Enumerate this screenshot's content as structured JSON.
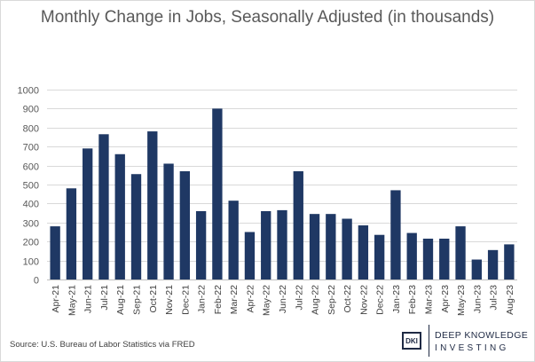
{
  "chart_data": {
    "type": "bar",
    "title": "Monthly Change in Jobs, Seasonally Adjusted (in thousands)",
    "xlabel": "",
    "ylabel": "",
    "ylim": [
      0,
      1000
    ],
    "yticks": [
      0,
      100,
      200,
      300,
      400,
      500,
      600,
      700,
      800,
      900,
      1000
    ],
    "grid": true,
    "bar_color": "#1f3864",
    "categories": [
      "Apr-21",
      "May-21",
      "Jun-21",
      "Jul-21",
      "Aug-21",
      "Sep-21",
      "Oct-21",
      "Nov-21",
      "Dec-21",
      "Jan-22",
      "Feb-22",
      "Mar-22",
      "Apr-22",
      "May-22",
      "Jun-22",
      "Jul-22",
      "Aug-22",
      "Sep-22",
      "Oct-22",
      "Nov-22",
      "Dec-22",
      "Jan-23",
      "Feb-23",
      "Mar-23",
      "Apr-23",
      "May-23",
      "Jun-23",
      "Jul-23",
      "Aug-23"
    ],
    "values": [
      280,
      480,
      690,
      765,
      660,
      555,
      780,
      610,
      570,
      360,
      900,
      415,
      250,
      360,
      365,
      570,
      345,
      345,
      320,
      285,
      235,
      470,
      245,
      215,
      215,
      280,
      105,
      155,
      185
    ]
  },
  "source": "Source: U.S. Bureau of Labor Statistics via FRED",
  "logo": {
    "mark": "DKI",
    "line1": "DEEP KNOWLEDGE",
    "line2": "INVESTING"
  }
}
